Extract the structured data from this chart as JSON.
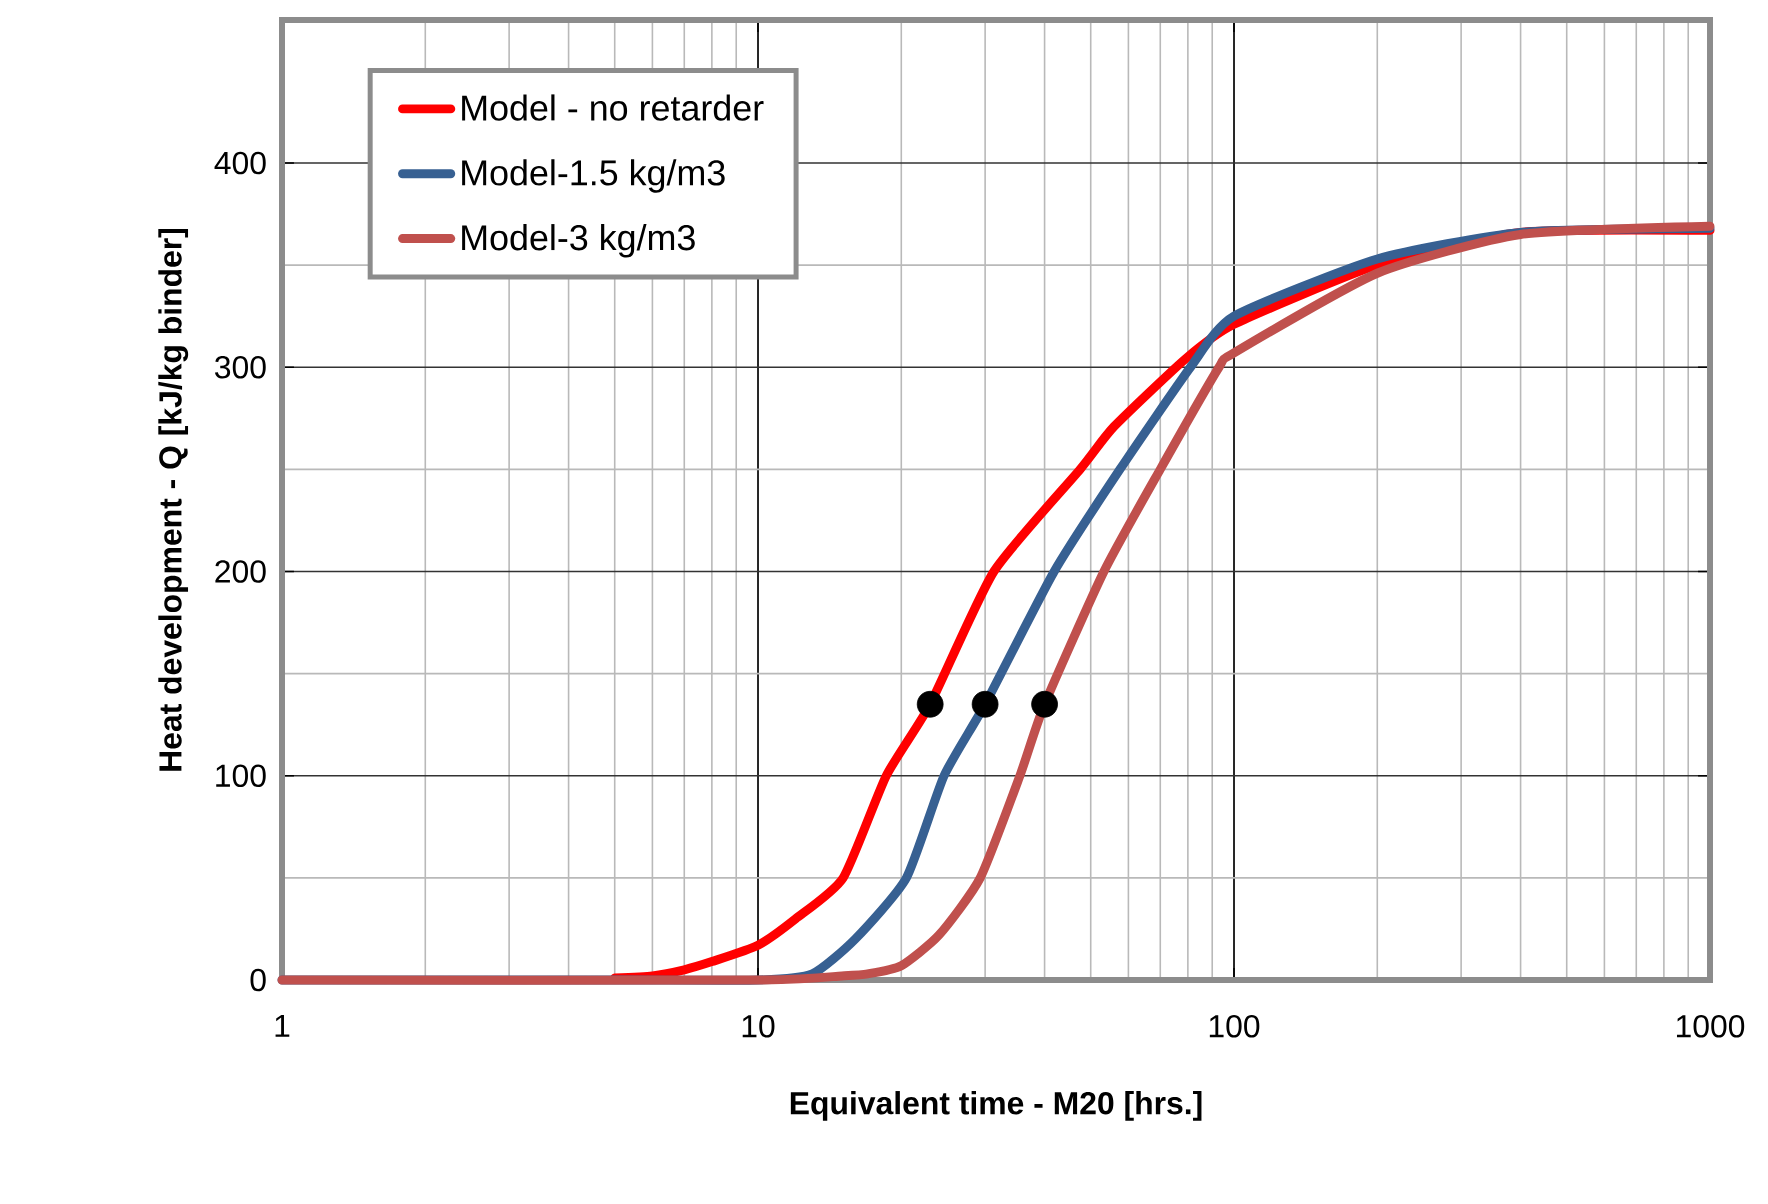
{
  "chart_data": {
    "type": "line",
    "xlabel": "Equivalent time - M20 [hrs.]",
    "ylabel": "Heat development - Q [kJ/kg binder]",
    "log": "x",
    "grid": true,
    "legend": "top left",
    "line_style": "solid",
    "xlim": [
      1,
      1000
    ],
    "xticks": [
      1,
      10,
      100,
      1000
    ],
    "ylim": [
      0,
      470
    ],
    "yticks": [
      0,
      100,
      200,
      300,
      400
    ],
    "series": [
      {
        "name": "Model - no retarder",
        "color": "#ff0000",
        "x": [
          5,
          6,
          7,
          8,
          10,
          12,
          15.1,
          18.6,
          23,
          31.3,
          47.5,
          56,
          79,
          100,
          200,
          400,
          1000
        ],
        "values": [
          1,
          2,
          5,
          9,
          17,
          30,
          50,
          100,
          135,
          200,
          250,
          271,
          304,
          321,
          350,
          366,
          367
        ]
      },
      {
        "name": "Model-1.5 kg/m3",
        "color": "#376092",
        "x": [
          1,
          5,
          10,
          13,
          16,
          20.5,
          24.6,
          30,
          41.9,
          57.6,
          81,
          100,
          200,
          400,
          1000
        ],
        "values": [
          0,
          0,
          0,
          3,
          20,
          50,
          100,
          135,
          200,
          250,
          300,
          325,
          353,
          366,
          368
        ]
      },
      {
        "name": "Model-3 kg/m3",
        "color": "#c0504d",
        "x": [
          1,
          10,
          15,
          17,
          20,
          24,
          29.3,
          35.5,
          40,
          53.3,
          70,
          93,
          100,
          200,
          400,
          1000
        ],
        "values": [
          0,
          0,
          2,
          3,
          7,
          22,
          50,
          100,
          135,
          200,
          250,
          300,
          307,
          346,
          365,
          369
        ]
      },
      {
        "type": "scatter",
        "color": "#000000",
        "x": [
          23,
          30,
          40
        ],
        "values": [
          135,
          135,
          135
        ]
      }
    ]
  }
}
